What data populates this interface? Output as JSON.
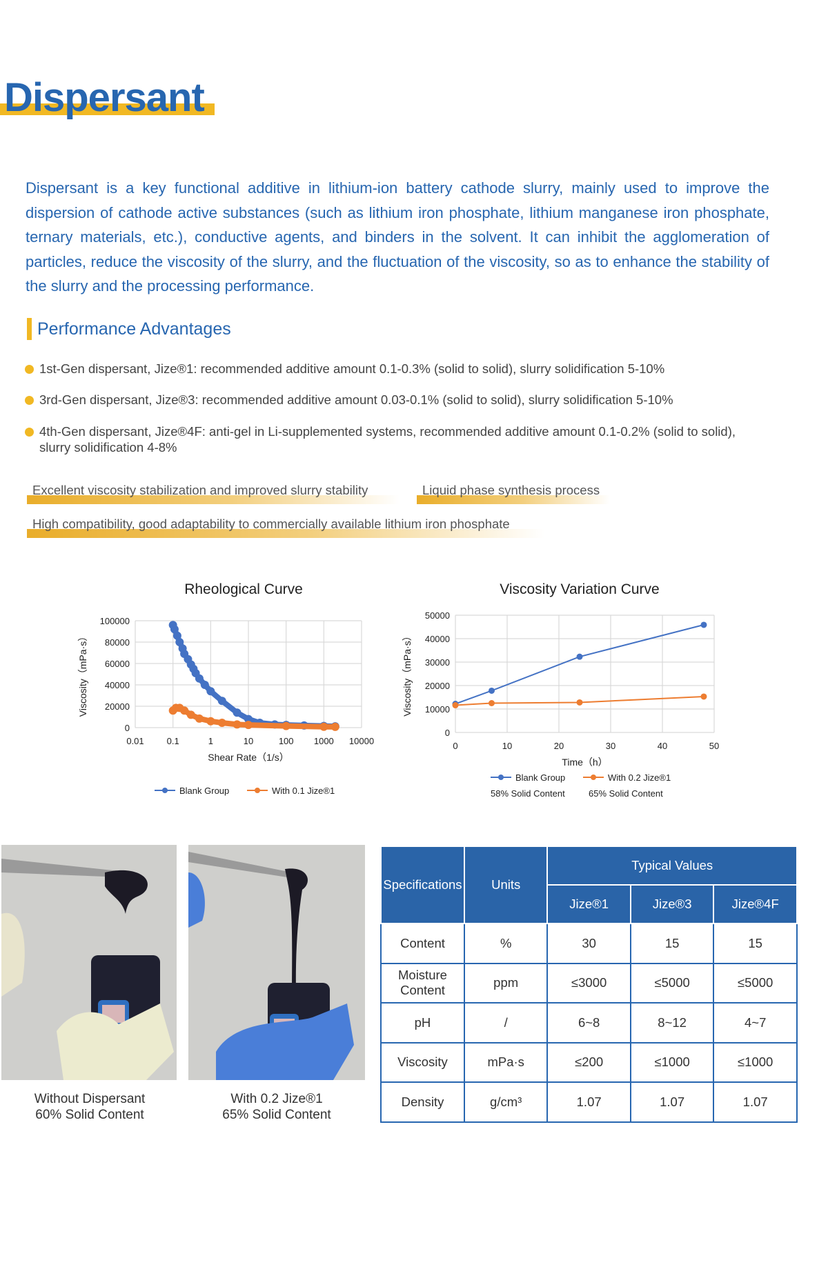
{
  "title": "Dispersant",
  "intro": "Dispersant is a key functional additive in lithium-ion battery cathode slurry, mainly used to improve the dispersion of cathode active substances (such as lithium iron phosphate, lithium manganese iron phosphate, ternary materials, etc.), conductive agents, and binders in the solvent. It can inhibit the agglomeration of particles, reduce the viscosity of the slurry, and the fluctuation of the viscosity, so as to enhance the stability of the slurry and the processing performance.",
  "performance": {
    "heading": "Performance Advantages",
    "bullets": [
      "1st-Gen dispersant, Jize®1: recommended additive amount 0.1-0.3% (solid to solid), slurry solidification 5-10%",
      "3rd-Gen dispersant, Jize®3: recommended additive amount 0.03-0.1% (solid to solid), slurry solidification 5-10%",
      "4th-Gen dispersant, Jize®4F: anti-gel in Li-supplemented systems, recommended additive amount 0.1-0.2% (solid to solid), slurry solidification 4-8%"
    ],
    "tags": [
      "Excellent viscosity stabilization and improved slurry stability",
      "Liquid phase synthesis process",
      "High compatibility, good adaptability to commercially available lithium iron phosphate"
    ]
  },
  "colors": {
    "brand_blue": "#2766b0",
    "accent_yellow": "#f1b823",
    "series_blue": "#4472c4",
    "series_orange": "#ed7d31"
  },
  "chart_data": [
    {
      "type": "scatter",
      "title": "Rheological Curve",
      "xlabel": "Shear Rate（1/s）",
      "ylabel": "Viscosity（mPa·s）",
      "xscale": "log",
      "xlim": [
        0.01,
        10000
      ],
      "ylim": [
        0,
        100000
      ],
      "xticks": [
        "0.01",
        "0.1",
        "1",
        "10",
        "100",
        "1000",
        "10000"
      ],
      "yticks": [
        "0",
        "20000",
        "40000",
        "60000",
        "80000",
        "100000"
      ],
      "grid": true,
      "legend": "bottom",
      "series": [
        {
          "name": "Blank Group",
          "color": "#4472c4",
          "points": [
            [
              0.1,
              96000
            ],
            [
              0.11,
              92000
            ],
            [
              0.13,
              86000
            ],
            [
              0.15,
              80000
            ],
            [
              0.18,
              74000
            ],
            [
              0.2,
              69000
            ],
            [
              0.25,
              64000
            ],
            [
              0.3,
              59000
            ],
            [
              0.35,
              55000
            ],
            [
              0.4,
              51000
            ],
            [
              0.5,
              46000
            ],
            [
              0.7,
              40000
            ],
            [
              1,
              34000
            ],
            [
              2,
              25000
            ],
            [
              5,
              14000
            ],
            [
              10,
              8000
            ],
            [
              20,
              4500
            ],
            [
              50,
              3000
            ],
            [
              100,
              2500
            ],
            [
              300,
              2000
            ],
            [
              1000,
              1500
            ],
            [
              2000,
              1200
            ]
          ]
        },
        {
          "name": "With 0.1 Jize®1",
          "color": "#ed7d31",
          "points": [
            [
              0.1,
              16000
            ],
            [
              0.12,
              18500
            ],
            [
              0.15,
              18500
            ],
            [
              0.2,
              16000
            ],
            [
              0.3,
              12000
            ],
            [
              0.5,
              8500
            ],
            [
              1,
              6000
            ],
            [
              2,
              4500
            ],
            [
              5,
              3000
            ],
            [
              10,
              2500
            ],
            [
              100,
              1500
            ],
            [
              1000,
              800
            ],
            [
              2000,
              700
            ]
          ]
        }
      ]
    },
    {
      "type": "line",
      "title": "Viscosity Variation Curve",
      "xlabel": "Time（h）",
      "ylabel": "Viscosity（mPa·s）",
      "xlim": [
        0,
        50
      ],
      "ylim": [
        0,
        50000
      ],
      "xticks": [
        "0",
        "10",
        "20",
        "30",
        "40",
        "50"
      ],
      "yticks": [
        "0",
        "10000",
        "20000",
        "30000",
        "40000",
        "50000"
      ],
      "grid": true,
      "legend": "bottom",
      "series": [
        {
          "name": "Blank Group",
          "note": "58% Solid Content",
          "color": "#4472c4",
          "points": [
            [
              0,
              12200
            ],
            [
              7,
              17800
            ],
            [
              24,
              32300
            ],
            [
              48,
              45900
            ]
          ]
        },
        {
          "name": "With 0.2 Jize®1",
          "note": "65% Solid Content",
          "color": "#ed7d31",
          "points": [
            [
              0,
              11600
            ],
            [
              7,
              12500
            ],
            [
              24,
              12800
            ],
            [
              48,
              15300
            ]
          ]
        }
      ]
    }
  ],
  "photos": [
    {
      "caption_line1": "Without Dispersant",
      "caption_line2": "60% Solid Content"
    },
    {
      "caption_line1": "With 0.2 Jize®1",
      "caption_line2": "65% Solid Content"
    }
  ],
  "table": {
    "spec_header": "Specifications",
    "units_header": "Units",
    "typical_header": "Typical Values",
    "products": [
      "Jize®1",
      "Jize®3",
      "Jize®4F"
    ],
    "rows": [
      {
        "spec": "Content",
        "unit": "%",
        "values": [
          "30",
          "15",
          "15"
        ]
      },
      {
        "spec": "Moisture Content",
        "unit": "ppm",
        "values": [
          "≤3000",
          "≤5000",
          "≤5000"
        ]
      },
      {
        "spec": "pH",
        "unit": "/",
        "values": [
          "6~8",
          "8~12",
          "4~7"
        ]
      },
      {
        "spec": "Viscosity",
        "unit": "mPa·s",
        "values": [
          "≤200",
          "≤1000",
          "≤1000"
        ]
      },
      {
        "spec": "Density",
        "unit": "g/cm³",
        "values": [
          "1.07",
          "1.07",
          "1.07"
        ]
      }
    ]
  }
}
